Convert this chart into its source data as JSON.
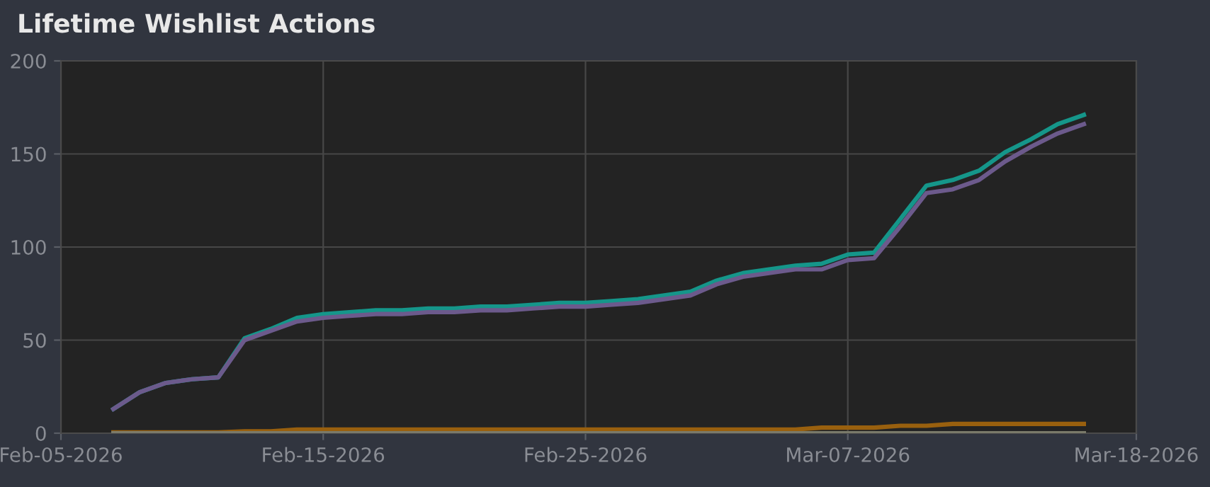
{
  "chart_data": {
    "type": "line",
    "title": "Lifetime Wishlist Actions",
    "x": [
      "2026-02-07",
      "2026-02-08",
      "2026-02-09",
      "2026-02-10",
      "2026-02-11",
      "2026-02-12",
      "2026-02-13",
      "2026-02-14",
      "2026-02-15",
      "2026-02-16",
      "2026-02-17",
      "2026-02-18",
      "2026-02-19",
      "2026-02-20",
      "2026-02-21",
      "2026-02-22",
      "2026-02-23",
      "2026-02-24",
      "2026-02-25",
      "2026-02-26",
      "2026-02-27",
      "2026-02-28",
      "2026-03-01",
      "2026-03-02",
      "2026-03-03",
      "2026-03-04",
      "2026-03-05",
      "2026-03-06",
      "2026-03-07",
      "2026-03-08",
      "2026-03-09",
      "2026-03-10",
      "2026-03-11",
      "2026-03-12",
      "2026-03-13",
      "2026-03-14",
      "2026-03-15",
      "2026-03-16"
    ],
    "series": [
      {
        "color": "#15968a",
        "values": [
          13,
          22,
          27,
          29,
          30,
          51,
          56,
          62,
          64,
          65,
          66,
          66,
          67,
          67,
          68,
          68,
          69,
          70,
          70,
          71,
          72,
          74,
          76,
          82,
          86,
          88,
          90,
          91,
          96,
          97,
          115,
          133,
          136,
          141,
          151,
          158,
          166,
          171
        ]
      },
      {
        "color": "#6c5a8c",
        "values": [
          13,
          22,
          27,
          29,
          30,
          50,
          55,
          60,
          62,
          63,
          64,
          64,
          65,
          65,
          66,
          66,
          67,
          68,
          68,
          69,
          70,
          72,
          74,
          80,
          84,
          86,
          88,
          88,
          93,
          94,
          111,
          129,
          131,
          136,
          146,
          154,
          161,
          166
        ]
      },
      {
        "color": "#99600e",
        "values": [
          0.5,
          0.5,
          0.5,
          0.5,
          0.5,
          1,
          1,
          2,
          2,
          2,
          2,
          2,
          2,
          2,
          2,
          2,
          2,
          2,
          2,
          2,
          2,
          2,
          2,
          2,
          2,
          2,
          2,
          3,
          3,
          3,
          4,
          4,
          5,
          5,
          5,
          5,
          5,
          5
        ]
      },
      {
        "color": "#7a7a6a",
        "values": [
          0,
          0,
          0,
          0,
          0,
          0,
          0,
          0,
          0,
          0,
          0,
          0,
          0,
          0,
          0,
          0,
          0,
          0,
          0,
          0,
          0,
          0,
          0,
          0,
          0,
          0,
          0,
          0,
          0,
          0,
          0,
          0,
          0,
          0,
          0,
          0,
          0,
          0
        ]
      }
    ],
    "xlim": [
      "2026-02-05",
      "2026-03-18"
    ],
    "xticks": [
      {
        "value": "2026-02-05",
        "label": "Feb-05-2026"
      },
      {
        "value": "2026-02-15",
        "label": "Feb-15-2026"
      },
      {
        "value": "2026-02-25",
        "label": "Feb-25-2026"
      },
      {
        "value": "2026-03-07",
        "label": "Mar-07-2026"
      },
      {
        "value": "2026-03-18",
        "label": "Mar-18-2026"
      }
    ],
    "ylim": [
      0,
      200
    ],
    "yticks": [
      0,
      50,
      100,
      150,
      200
    ],
    "grid": true,
    "marker": "none",
    "line_style": "solid"
  }
}
